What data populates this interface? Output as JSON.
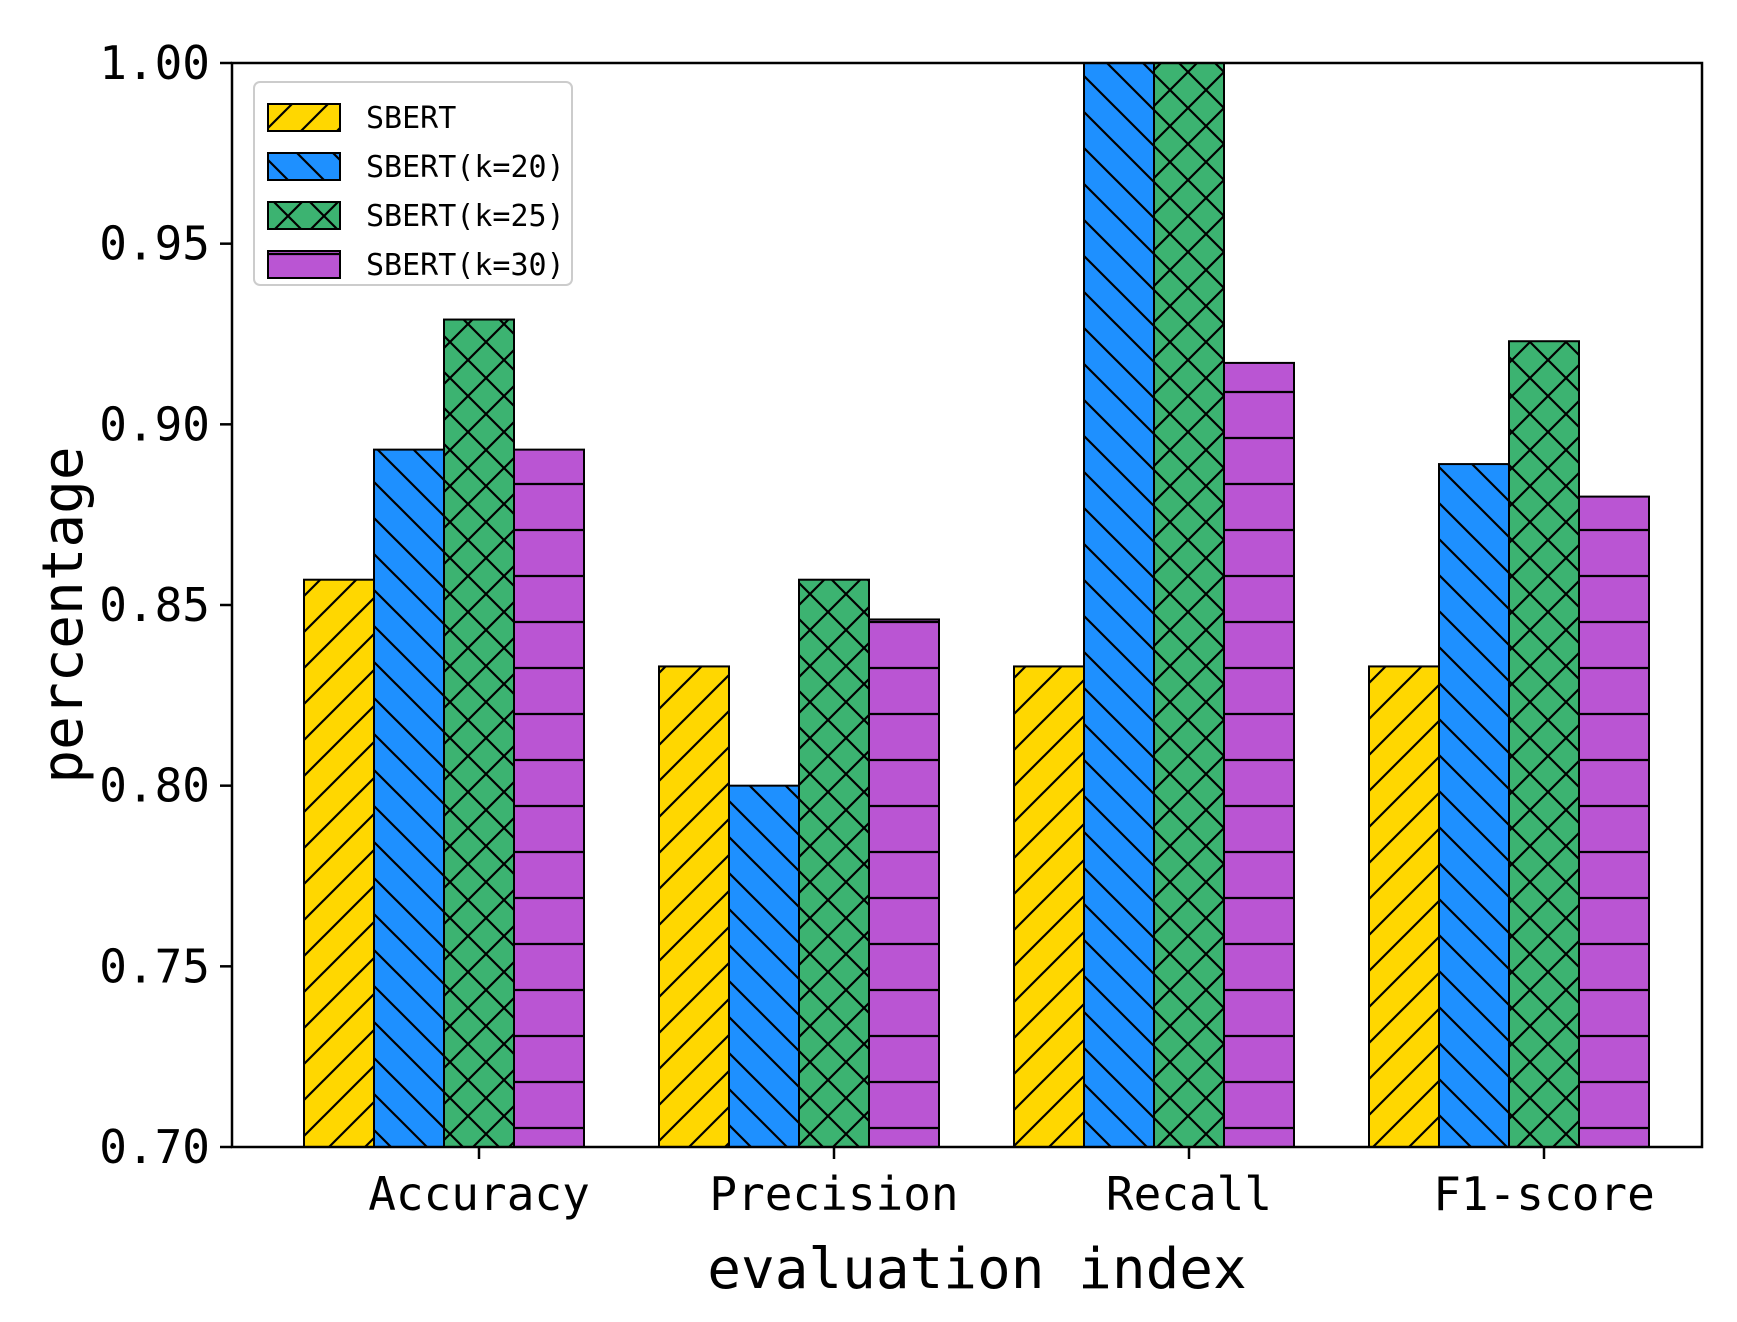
{
  "chart_data": {
    "type": "bar",
    "title": "",
    "xlabel": "evaluation index",
    "ylabel": "percentage",
    "ylim": [
      0.7,
      1.0
    ],
    "yticks": [
      "0.70",
      "0.75",
      "0.80",
      "0.85",
      "0.90",
      "0.95",
      "1.00"
    ],
    "ytick_values": [
      0.7,
      0.75,
      0.8,
      0.85,
      0.9,
      0.95,
      1.0
    ],
    "categories": [
      "Accuracy",
      "Precision",
      "Recall",
      "F1-score"
    ],
    "grid": false,
    "legend_position": "top-left",
    "series": [
      {
        "name": "SBERT",
        "color": "#ffd700",
        "hatch": "forward-diagonal",
        "values": [
          0.857,
          0.833,
          0.833,
          0.833
        ]
      },
      {
        "name": "SBERT(k=20)",
        "color": "#1e90ff",
        "hatch": "back-diagonal",
        "values": [
          0.893,
          0.8,
          1.0,
          0.889
        ]
      },
      {
        "name": "SBERT(k=25)",
        "color": "#3cb371",
        "hatch": "crosshatch",
        "values": [
          0.929,
          0.857,
          1.0,
          0.923
        ]
      },
      {
        "name": "SBERT(k=30)",
        "color": "#ba55d3",
        "hatch": "horizontal",
        "values": [
          0.893,
          0.846,
          0.917,
          0.88
        ]
      }
    ]
  }
}
